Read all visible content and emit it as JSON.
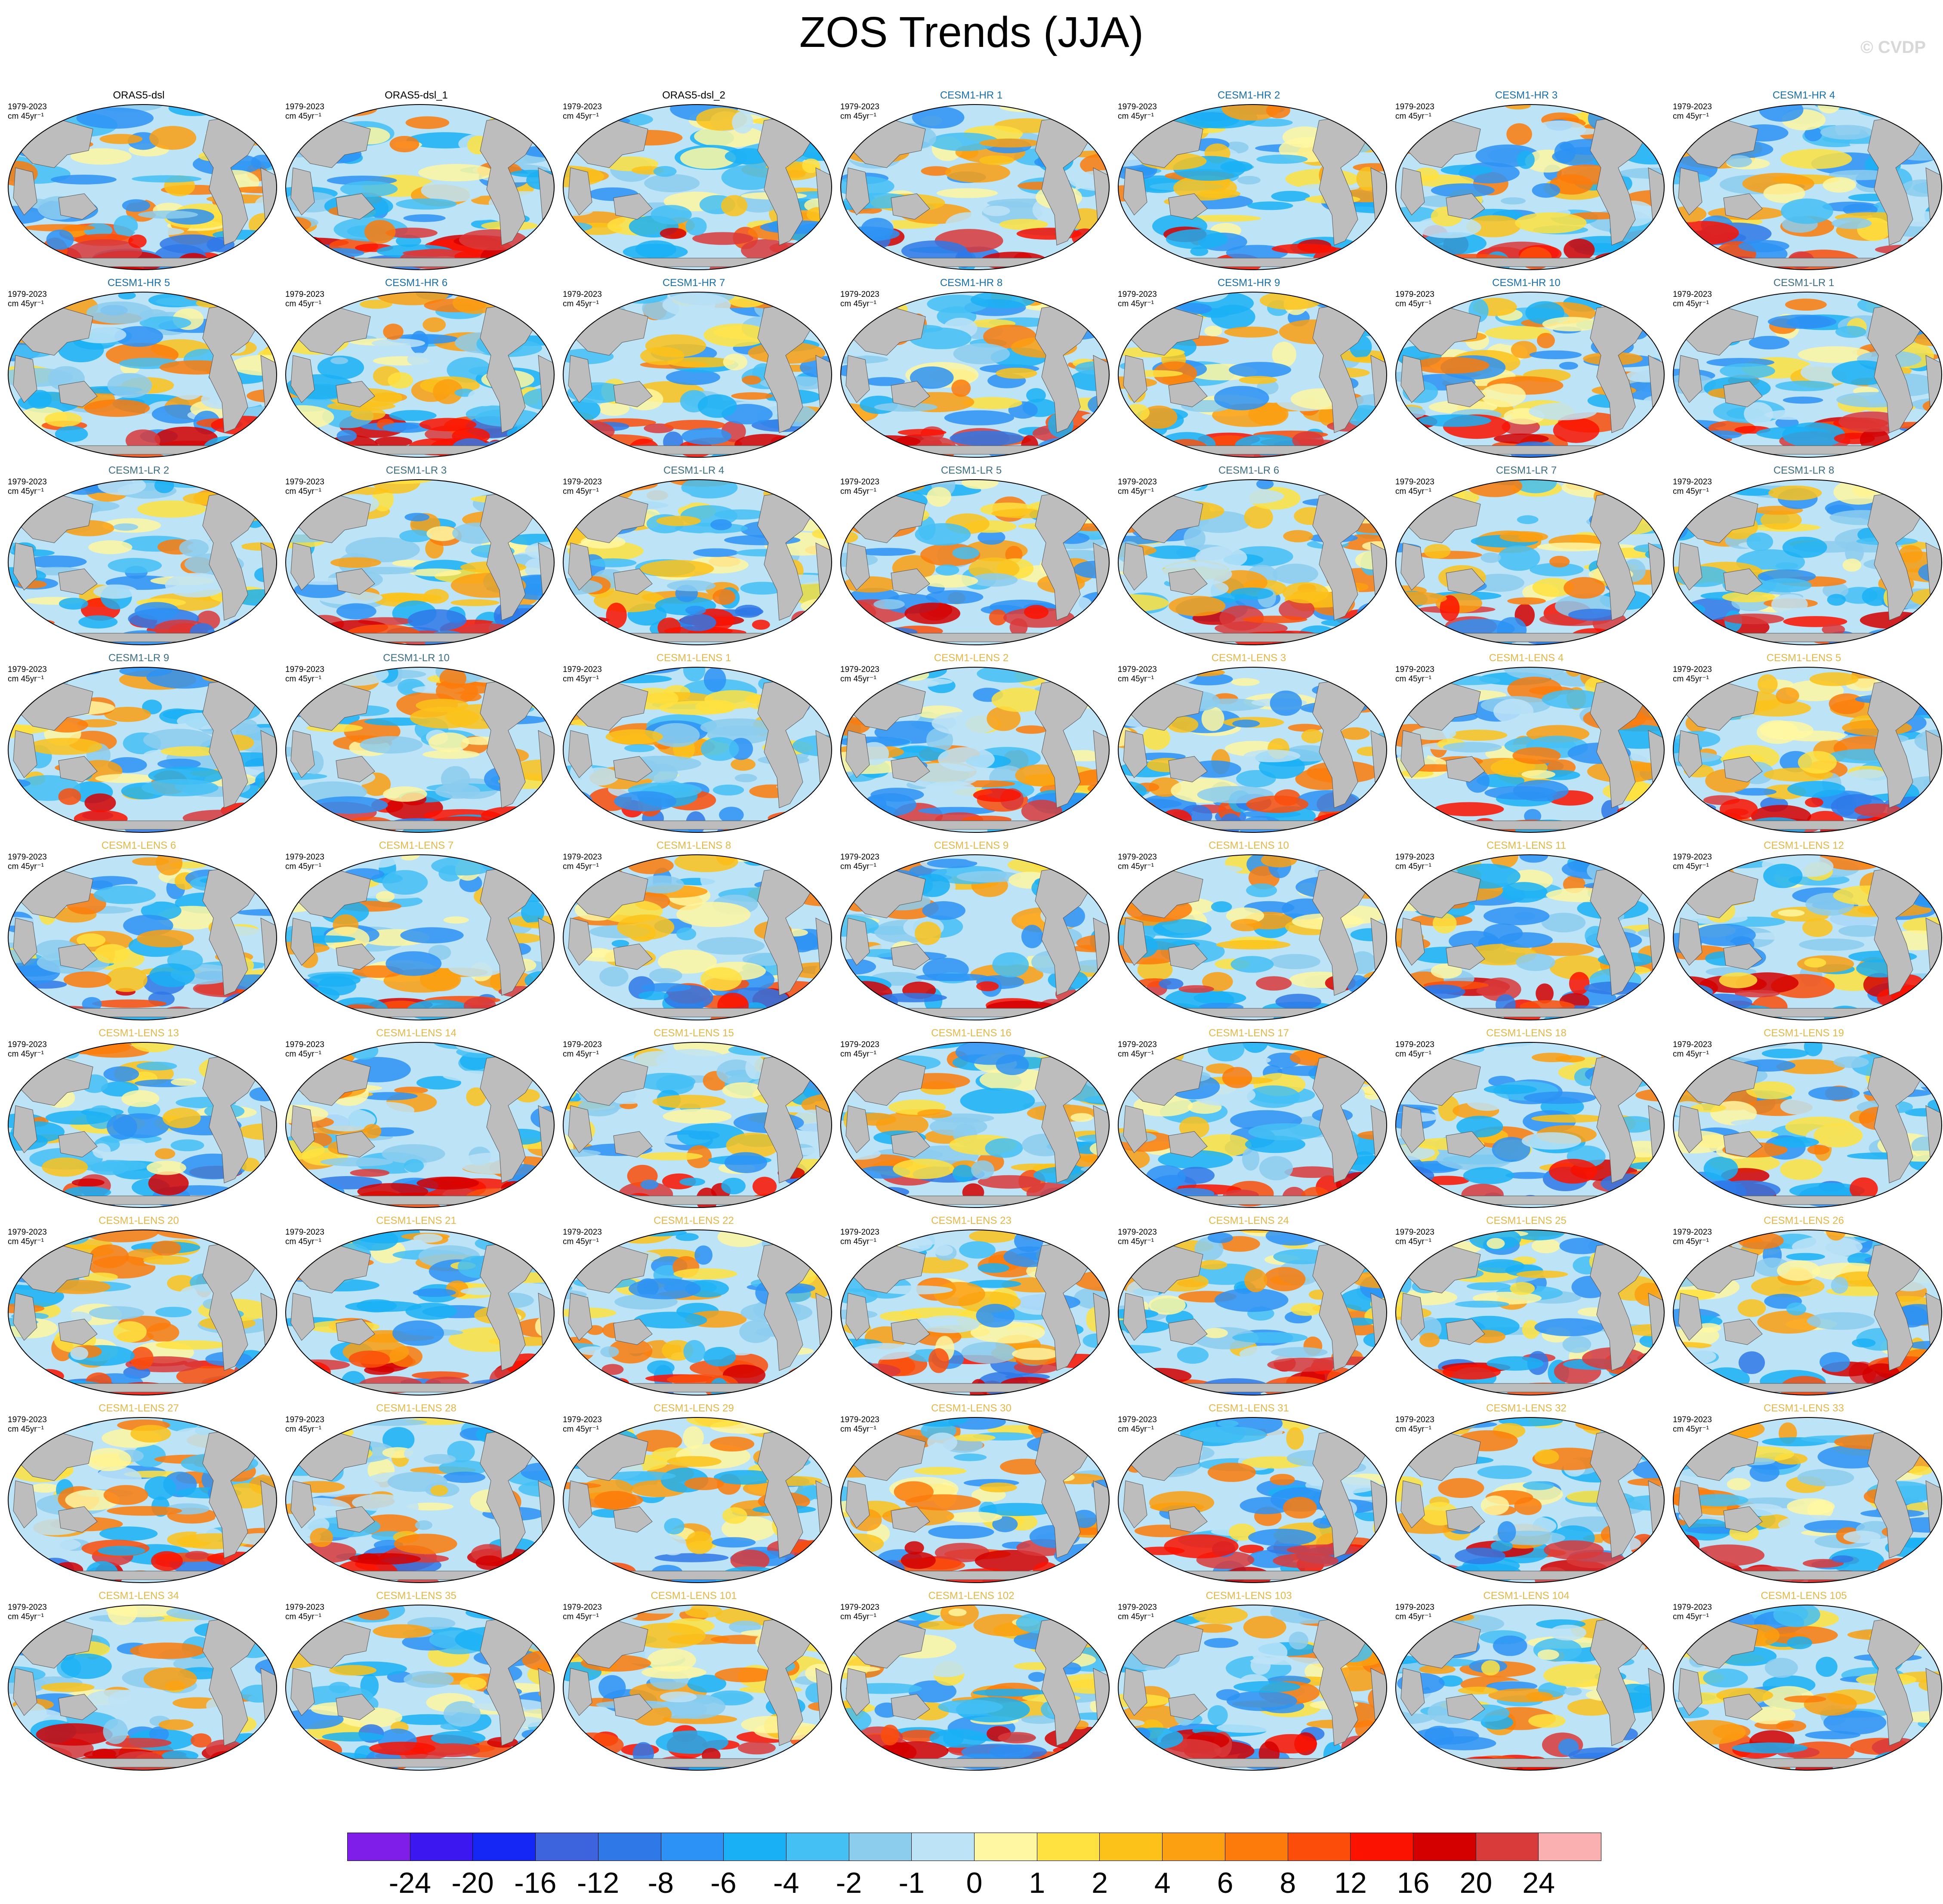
{
  "title": "ZOS Trends (JJA)",
  "watermark": "© CVDP",
  "panel_period": "1979-2023",
  "panel_units": "cm 45yr⁻¹",
  "panels": [
    {
      "name": "ORAS5-dsl",
      "group": "obs"
    },
    {
      "name": "ORAS5-dsl_1",
      "group": "obs"
    },
    {
      "name": "ORAS5-dsl_2",
      "group": "obs"
    },
    {
      "name": "CESM1-HR 1",
      "group": "hr"
    },
    {
      "name": "CESM1-HR 2",
      "group": "hr"
    },
    {
      "name": "CESM1-HR 3",
      "group": "hr"
    },
    {
      "name": "CESM1-HR 4",
      "group": "hr"
    },
    {
      "name": "CESM1-HR 5",
      "group": "hr"
    },
    {
      "name": "CESM1-HR 6",
      "group": "hr"
    },
    {
      "name": "CESM1-HR 7",
      "group": "hr"
    },
    {
      "name": "CESM1-HR 8",
      "group": "hr"
    },
    {
      "name": "CESM1-HR 9",
      "group": "hr"
    },
    {
      "name": "CESM1-HR 10",
      "group": "hr"
    },
    {
      "name": "CESM1-LR 1",
      "group": "lr"
    },
    {
      "name": "CESM1-LR 2",
      "group": "lr"
    },
    {
      "name": "CESM1-LR 3",
      "group": "lr"
    },
    {
      "name": "CESM1-LR 4",
      "group": "lr"
    },
    {
      "name": "CESM1-LR 5",
      "group": "lr"
    },
    {
      "name": "CESM1-LR 6",
      "group": "lr"
    },
    {
      "name": "CESM1-LR 7",
      "group": "lr"
    },
    {
      "name": "CESM1-LR 8",
      "group": "lr"
    },
    {
      "name": "CESM1-LR 9",
      "group": "lr"
    },
    {
      "name": "CESM1-LR 10",
      "group": "lr"
    },
    {
      "name": "CESM1-LENS 1",
      "group": "lens"
    },
    {
      "name": "CESM1-LENS 2",
      "group": "lens"
    },
    {
      "name": "CESM1-LENS 3",
      "group": "lens"
    },
    {
      "name": "CESM1-LENS 4",
      "group": "lens"
    },
    {
      "name": "CESM1-LENS 5",
      "group": "lens"
    },
    {
      "name": "CESM1-LENS 6",
      "group": "lens"
    },
    {
      "name": "CESM1-LENS 7",
      "group": "lens"
    },
    {
      "name": "CESM1-LENS 8",
      "group": "lens"
    },
    {
      "name": "CESM1-LENS 9",
      "group": "lens"
    },
    {
      "name": "CESM1-LENS 10",
      "group": "lens"
    },
    {
      "name": "CESM1-LENS 11",
      "group": "lens"
    },
    {
      "name": "CESM1-LENS 12",
      "group": "lens"
    },
    {
      "name": "CESM1-LENS 13",
      "group": "lens"
    },
    {
      "name": "CESM1-LENS 14",
      "group": "lens"
    },
    {
      "name": "CESM1-LENS 15",
      "group": "lens"
    },
    {
      "name": "CESM1-LENS 16",
      "group": "lens"
    },
    {
      "name": "CESM1-LENS 17",
      "group": "lens"
    },
    {
      "name": "CESM1-LENS 18",
      "group": "lens"
    },
    {
      "name": "CESM1-LENS 19",
      "group": "lens"
    },
    {
      "name": "CESM1-LENS 20",
      "group": "lens"
    },
    {
      "name": "CESM1-LENS 21",
      "group": "lens"
    },
    {
      "name": "CESM1-LENS 22",
      "group": "lens"
    },
    {
      "name": "CESM1-LENS 23",
      "group": "lens"
    },
    {
      "name": "CESM1-LENS 24",
      "group": "lens"
    },
    {
      "name": "CESM1-LENS 25",
      "group": "lens"
    },
    {
      "name": "CESM1-LENS 26",
      "group": "lens"
    },
    {
      "name": "CESM1-LENS 27",
      "group": "lens"
    },
    {
      "name": "CESM1-LENS 28",
      "group": "lens"
    },
    {
      "name": "CESM1-LENS 29",
      "group": "lens"
    },
    {
      "name": "CESM1-LENS 30",
      "group": "lens"
    },
    {
      "name": "CESM1-LENS 31",
      "group": "lens"
    },
    {
      "name": "CESM1-LENS 32",
      "group": "lens"
    },
    {
      "name": "CESM1-LENS 33",
      "group": "lens"
    },
    {
      "name": "CESM1-LENS 34",
      "group": "lens"
    },
    {
      "name": "CESM1-LENS 35",
      "group": "lens"
    },
    {
      "name": "CESM1-LENS 101",
      "group": "lens"
    },
    {
      "name": "CESM1-LENS 102",
      "group": "lens"
    },
    {
      "name": "CESM1-LENS 103",
      "group": "lens"
    },
    {
      "name": "CESM1-LENS 104",
      "group": "lens"
    },
    {
      "name": "CESM1-LENS 105",
      "group": "lens"
    }
  ],
  "title_colors": {
    "obs": "#000000",
    "hr": "#1a6fa8",
    "lr": "#3d6f82",
    "lens": "#e2b84a"
  },
  "land_color": "#bdbdbd",
  "colorbar": {
    "colors": [
      "#7f1ee8",
      "#3c17f0",
      "#1427f5",
      "#3d64dc",
      "#2f78e8",
      "#2d92f5",
      "#1ab0f5",
      "#44c0f5",
      "#8ccdee",
      "#bde3f7",
      "#fff7a1",
      "#ffe240",
      "#fcc21a",
      "#fc9f10",
      "#fc7b0a",
      "#fc4e0a",
      "#fc1200",
      "#d40000",
      "#d93a3a",
      "#fab0b0"
    ],
    "labels": [
      "-24",
      "-20",
      "-16",
      "-12",
      "-8",
      "-6",
      "-4",
      "-2",
      "-1",
      "0",
      "1",
      "2",
      "4",
      "6",
      "8",
      "12",
      "16",
      "20",
      "24"
    ]
  }
}
